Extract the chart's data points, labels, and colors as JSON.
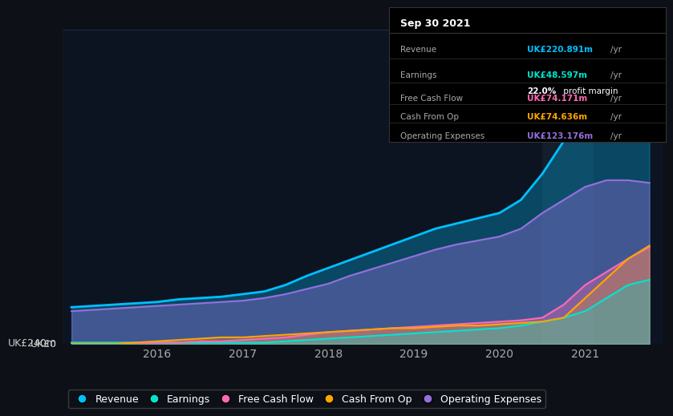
{
  "bg_color": "#0d1117",
  "chart_bg": "#0d1421",
  "grid_color": "#1e2a3a",
  "ylabel_text": "UK£240m",
  "ylabel0_text": "UK£0",
  "x_years": [
    2015.0,
    2015.25,
    2015.5,
    2015.75,
    2016.0,
    2016.25,
    2016.5,
    2016.75,
    2017.0,
    2017.25,
    2017.5,
    2017.75,
    2018.0,
    2018.25,
    2018.5,
    2018.75,
    2019.0,
    2019.25,
    2019.5,
    2019.75,
    2020.0,
    2020.25,
    2020.5,
    2020.75,
    2021.0,
    2021.25,
    2021.5,
    2021.75
  ],
  "revenue": [
    28,
    29,
    30,
    31,
    32,
    34,
    35,
    36,
    38,
    40,
    45,
    52,
    58,
    64,
    70,
    76,
    82,
    88,
    92,
    96,
    100,
    110,
    130,
    155,
    175,
    195,
    215,
    221
  ],
  "earnings": [
    1,
    1,
    1,
    1,
    1,
    1,
    1,
    1,
    1,
    1,
    2,
    3,
    4,
    5,
    6,
    7,
    8,
    9,
    10,
    11,
    12,
    14,
    17,
    20,
    25,
    35,
    45,
    49
  ],
  "free_cash_flow": [
    0,
    0,
    0,
    0,
    1,
    1,
    2,
    2,
    3,
    4,
    5,
    7,
    9,
    10,
    11,
    12,
    13,
    14,
    15,
    16,
    17,
    18,
    20,
    30,
    45,
    55,
    65,
    74
  ],
  "cash_from_op": [
    0,
    0,
    0,
    1,
    2,
    3,
    4,
    5,
    5,
    6,
    7,
    8,
    9,
    10,
    11,
    12,
    12,
    13,
    14,
    14,
    15,
    16,
    17,
    20,
    35,
    50,
    65,
    75
  ],
  "operating_expenses": [
    25,
    26,
    27,
    28,
    29,
    30,
    31,
    32,
    33,
    35,
    38,
    42,
    46,
    52,
    57,
    62,
    67,
    72,
    76,
    79,
    82,
    88,
    100,
    110,
    120,
    125,
    125,
    123
  ],
  "revenue_color": "#00bfff",
  "earnings_color": "#00e5cc",
  "free_cash_flow_color": "#ff69b4",
  "cash_from_op_color": "#ffa500",
  "operating_expenses_color": "#9370db",
  "x_ticks": [
    2016,
    2017,
    2018,
    2019,
    2020,
    2021
  ],
  "ylim": [
    0,
    240
  ],
  "tooltip": {
    "date": "Sep 30 2021",
    "revenue_val": "UK£220.891m",
    "earnings_val": "UK£48.597m",
    "profit_margin": "22.0%",
    "fcf_val": "UK£74.171m",
    "cfo_val": "UK£74.636m",
    "opex_val": "UK£123.176m"
  },
  "legend_items": [
    "Revenue",
    "Earnings",
    "Free Cash Flow",
    "Cash From Op",
    "Operating Expenses"
  ]
}
